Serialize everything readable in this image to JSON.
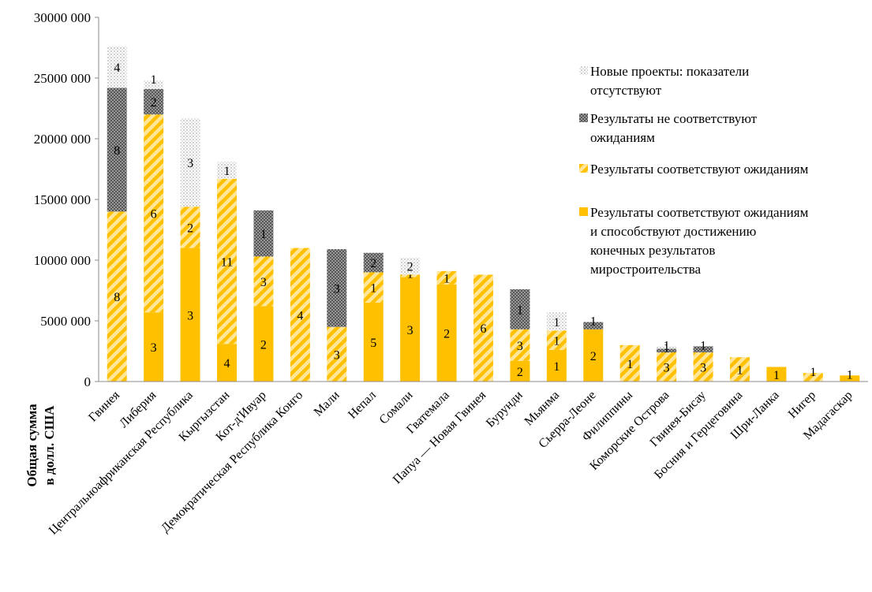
{
  "chart_data": {
    "type": "bar",
    "stacked": true,
    "title": "",
    "xlabel": "",
    "ylabel_lines": [
      "Общая сумма",
      "в долл. США"
    ],
    "ylim": [
      0,
      30000000
    ],
    "yticks": [
      0,
      5000000,
      10000000,
      15000000,
      20000000,
      25000000,
      30000000
    ],
    "ytick_labels": [
      "0",
      "5000 000",
      "10000 000",
      "15000 000",
      "20000 000",
      "25000 000",
      "30000 000"
    ],
    "grid": false,
    "legend_position": "right",
    "categories": [
      "Гвинея",
      "Либерия",
      "Центральноафриканская Республика",
      "Кыргызстан",
      "Кот-д'Ивуар",
      "Демократическая Республика Конго",
      "Мали",
      "Непал",
      "Сомали",
      "Гватемала",
      "Папуа — Новая Гвинея",
      "Бурунди",
      "Мьянма",
      "Сьерра-Леоне",
      "Филиппины",
      "Коморские Острова",
      "Гвинея-Бисау",
      "Босния и Герцеговина",
      "Шри-Ланка",
      "Нигер",
      "Мадагаскар"
    ],
    "series": [
      {
        "name": "Результаты соответствуют ожиданиям и способствуют достижению конечных результатов миростроительства",
        "pattern": "solid",
        "color": "#FFC000",
        "values": [
          0,
          5700000,
          11000000,
          3100000,
          6200000,
          0,
          0,
          6500000,
          8600000,
          8000000,
          0,
          1700000,
          2600000,
          4300000,
          0,
          0,
          0,
          0,
          1200000,
          0,
          500000
        ],
        "counts": [
          "",
          "3",
          "3",
          "4",
          "2",
          "",
          "",
          "5",
          "3",
          "2",
          "",
          "2",
          "1",
          "2",
          "",
          "",
          "",
          "",
          "1",
          "",
          "1"
        ]
      },
      {
        "name": "Результаты соответствуют ожиданиям",
        "pattern": "hatch",
        "color": "#FFC000",
        "values": [
          14000000,
          16300000,
          3400000,
          13600000,
          4100000,
          11000000,
          4500000,
          2500000,
          200000,
          1100000,
          8800000,
          2600000,
          1600000,
          0,
          3000000,
          2400000,
          2400000,
          2000000,
          0,
          700000,
          0
        ],
        "counts": [
          "8",
          "6",
          "2",
          "11",
          "3",
          "4",
          "3",
          "1",
          "1",
          "1",
          "6",
          "3",
          "1",
          "",
          "1",
          "3",
          "3",
          "1",
          "",
          "1",
          ""
        ]
      },
      {
        "name": "Результаты не соответствуют ожиданиям",
        "pattern": "dense-check",
        "color": "#7F7F7F",
        "values": [
          10200000,
          2100000,
          0,
          0,
          3800000,
          0,
          6400000,
          1600000,
          0,
          0,
          0,
          3300000,
          0,
          600000,
          0,
          300000,
          500000,
          0,
          0,
          0,
          0
        ],
        "counts": [
          "8",
          "2",
          "",
          "",
          "1",
          "",
          "3",
          "2",
          "",
          "",
          "",
          "1",
          "",
          "1",
          "",
          "1",
          "1",
          "",
          "",
          "",
          ""
        ]
      },
      {
        "name": "Новые проекты: показатели отсутствуют",
        "pattern": "dots",
        "color": "#D9D9D9",
        "values": [
          3400000,
          700000,
          7300000,
          1400000,
          0,
          0,
          0,
          0,
          1400000,
          0,
          0,
          0,
          1500000,
          0,
          0,
          200000,
          0,
          0,
          0,
          0,
          0
        ],
        "counts": [
          "4",
          "1",
          "3",
          "1",
          "",
          "",
          "",
          "",
          "2",
          "",
          "",
          "",
          "1",
          "",
          "",
          "1",
          "",
          "",
          "",
          "",
          ""
        ]
      }
    ]
  }
}
